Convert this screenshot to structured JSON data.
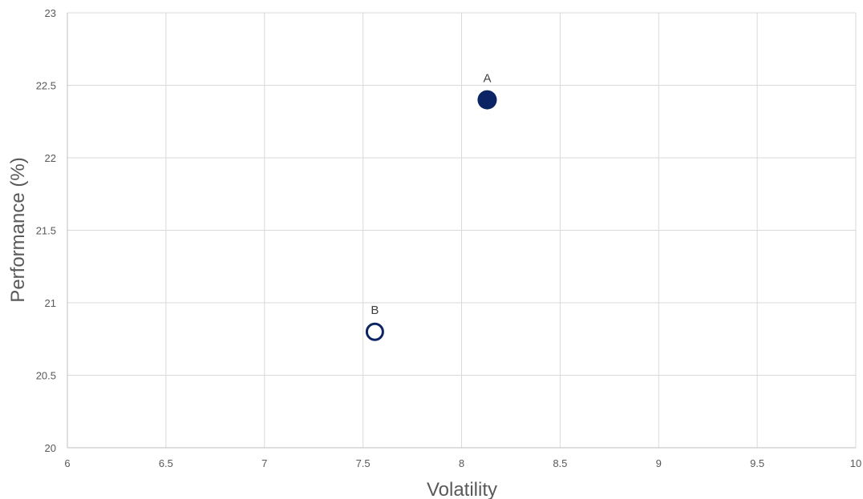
{
  "chart_data": {
    "type": "scatter",
    "title": "",
    "xlabel": "Volatility",
    "ylabel": "Performance (%)",
    "xlim": [
      6,
      10
    ],
    "ylim": [
      20,
      23
    ],
    "x_ticks": [
      6,
      6.5,
      7,
      7.5,
      8,
      8.5,
      9,
      9.5,
      10
    ],
    "y_ticks": [
      20,
      20.5,
      21,
      21.5,
      22,
      22.5,
      23
    ],
    "grid": true,
    "legend": "none",
    "points": [
      {
        "label": "A",
        "x": 8.13,
        "y": 22.4,
        "style": "filled",
        "color": "#0b2463"
      },
      {
        "label": "B",
        "x": 7.56,
        "y": 20.8,
        "style": "hollow",
        "color": "#0b2463"
      }
    ]
  }
}
